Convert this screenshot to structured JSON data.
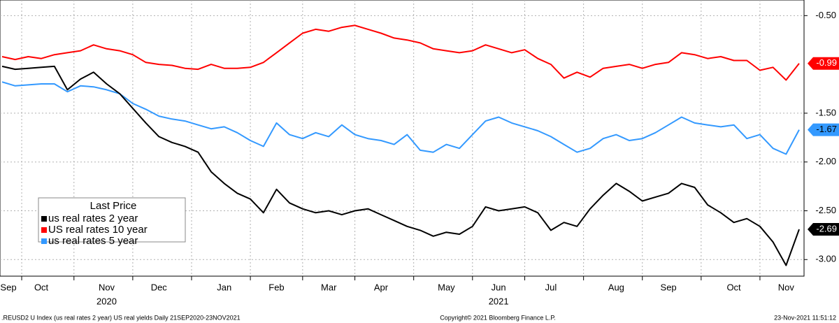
{
  "chart_data": {
    "type": "line",
    "x": [
      "Sep",
      null,
      null,
      "Oct",
      null,
      null,
      null,
      null,
      "Nov",
      null,
      null,
      null,
      "Dec",
      null,
      null,
      null,
      null,
      "Jan",
      null,
      null,
      null,
      "Feb",
      null,
      null,
      null,
      "Mar",
      null,
      null,
      null,
      "Apr",
      null,
      null,
      null,
      null,
      "May",
      null,
      null,
      null,
      "Jun",
      null,
      null,
      null,
      "Jul",
      null,
      null,
      null,
      null,
      "Aug",
      null,
      null,
      null,
      "Sep",
      null,
      null,
      null,
      null,
      "Oct",
      null,
      null,
      null,
      "Nov",
      null
    ],
    "year_labels": [
      "2020",
      "2021"
    ],
    "legend_title": "Last Price",
    "series": [
      {
        "name": "us real rates 2 year",
        "color": "#000000",
        "values": [
          -1.02,
          -1.05,
          -1.04,
          -1.03,
          -1.02,
          -1.26,
          -1.15,
          -1.08,
          -1.2,
          -1.3,
          -1.45,
          -1.6,
          -1.74,
          -1.8,
          -1.84,
          -1.9,
          -2.1,
          -2.22,
          -2.32,
          -2.38,
          -2.52,
          -2.28,
          -2.42,
          -2.48,
          -2.52,
          -2.5,
          -2.54,
          -2.5,
          -2.48,
          -2.54,
          -2.6,
          -2.66,
          -2.7,
          -2.76,
          -2.72,
          -2.74,
          -2.66,
          -2.46,
          -2.5,
          -2.48,
          -2.46,
          -2.52,
          -2.7,
          -2.62,
          -2.66,
          -2.48,
          -2.34,
          -2.22,
          -2.3,
          -2.4,
          -2.36,
          -2.32,
          -2.22,
          -2.26,
          -2.44,
          -2.52,
          -2.62,
          -2.58,
          -2.66,
          -2.82,
          -3.06,
          -2.69
        ]
      },
      {
        "name": "US real rates 10 year",
        "color": "#ff0000",
        "values": [
          -0.92,
          -0.95,
          -0.92,
          -0.94,
          -0.9,
          -0.88,
          -0.86,
          -0.8,
          -0.84,
          -0.86,
          -0.9,
          -0.98,
          -1.0,
          -1.01,
          -1.04,
          -1.05,
          -1.0,
          -1.04,
          -1.04,
          -1.03,
          -0.98,
          -0.88,
          -0.78,
          -0.68,
          -0.64,
          -0.66,
          -0.62,
          -0.6,
          -0.64,
          -0.68,
          -0.73,
          -0.75,
          -0.78,
          -0.84,
          -0.86,
          -0.88,
          -0.86,
          -0.8,
          -0.84,
          -0.88,
          -0.85,
          -0.94,
          -1.0,
          -1.14,
          -1.08,
          -1.13,
          -1.04,
          -1.02,
          -1.0,
          -1.04,
          -1.0,
          -0.98,
          -0.88,
          -0.9,
          -0.94,
          -0.92,
          -0.96,
          -0.96,
          -1.06,
          -1.03,
          -1.16,
          -0.99
        ]
      },
      {
        "name": "us real rates 5 year",
        "color": "#3399ff",
        "values": [
          -1.18,
          -1.22,
          -1.21,
          -1.2,
          -1.2,
          -1.28,
          -1.22,
          -1.23,
          -1.26,
          -1.3,
          -1.4,
          -1.46,
          -1.53,
          -1.56,
          -1.58,
          -1.62,
          -1.66,
          -1.64,
          -1.7,
          -1.78,
          -1.84,
          -1.6,
          -1.72,
          -1.76,
          -1.7,
          -1.74,
          -1.62,
          -1.72,
          -1.76,
          -1.78,
          -1.82,
          -1.72,
          -1.88,
          -1.9,
          -1.82,
          -1.86,
          -1.72,
          -1.58,
          -1.54,
          -1.6,
          -1.64,
          -1.68,
          -1.74,
          -1.82,
          -1.9,
          -1.86,
          -1.76,
          -1.72,
          -1.78,
          -1.76,
          -1.7,
          -1.62,
          -1.54,
          -1.6,
          -1.62,
          -1.64,
          -1.62,
          -1.76,
          -1.72,
          -1.86,
          -1.92,
          -1.67
        ]
      }
    ],
    "ylim": [
      -3.17,
      -0.34
    ],
    "yticks": [
      {
        "value": -0.5,
        "label": "-0.50"
      },
      {
        "value": -1.5,
        "label": "-1.50"
      },
      {
        "value": -2.0,
        "label": "-2.00"
      },
      {
        "value": -2.5,
        "label": "-2.50"
      },
      {
        "value": -3.0,
        "label": "-3.00"
      }
    ],
    "grid": true,
    "footer": {
      "left": ".REUSD2 U Index (us real rates 2 year) US real yields  Daily 21SEP2020-23NOV2021",
      "center": "Copyright© 2021 Bloomberg Finance L.P.",
      "right": "23-Nov-2021 11:51:12"
    }
  }
}
